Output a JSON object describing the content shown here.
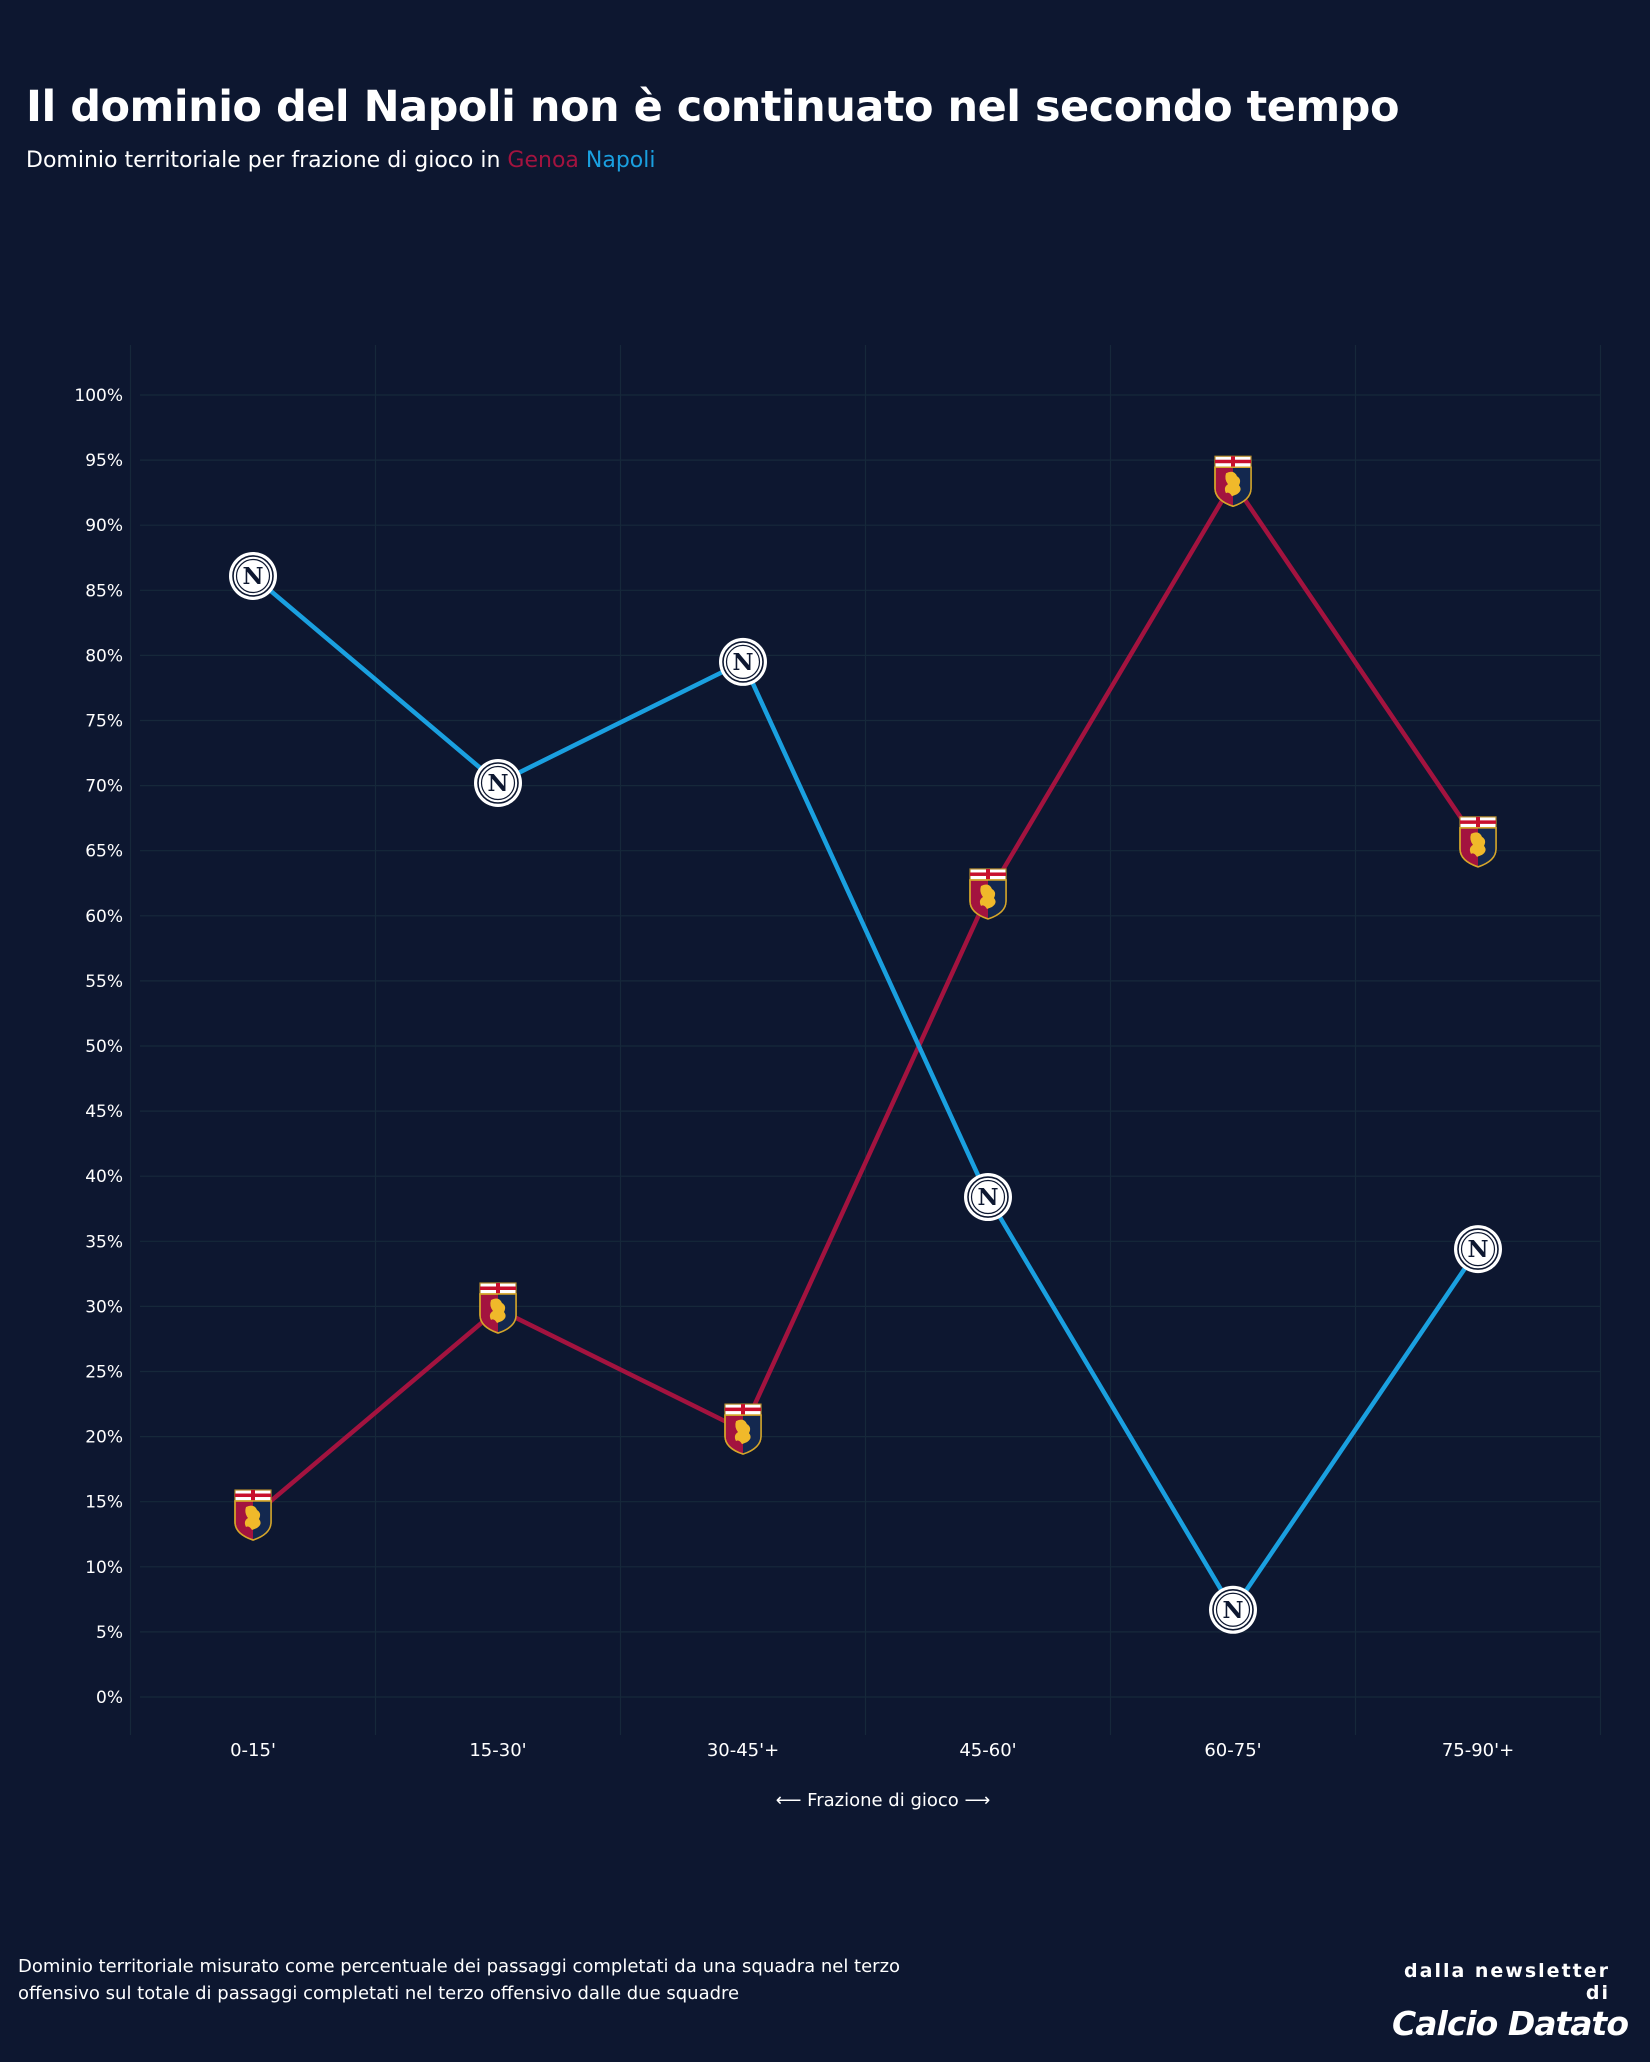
{
  "header": {
    "title": "Il dominio del Napoli non è continuato nel secondo tempo",
    "subtitle_prefix": "Dominio territoriale per frazione di gioco in",
    "team1": "Genoa",
    "team2": "Napoli"
  },
  "footer": {
    "note_line1": "Dominio territoriale misurato come percentuale dei passaggi completati da una squadra nel terzo",
    "note_line2": "offensivo sul totale di passaggi completati nel terzo offensivo dalle due squadre",
    "brand_top": "dalla newsletter di",
    "brand_name": "Calcio Datato"
  },
  "colors": {
    "background": "#0d1730",
    "genoa": "#a3133f",
    "napoli": "#1aa0e0",
    "grid": "#16283a"
  },
  "chart_data": {
    "type": "line",
    "categories": [
      "0-15'",
      "15-30'",
      "30-45'+",
      "45-60'",
      "60-75'",
      "75-90'+"
    ],
    "series": [
      {
        "name": "Genoa",
        "values": [
          13.9,
          29.8,
          20.5,
          61.6,
          93.3,
          65.6
        ],
        "color": "#a3133f",
        "marker": "genoa-crest"
      },
      {
        "name": "Napoli",
        "values": [
          86.1,
          70.2,
          79.5,
          38.4,
          6.7,
          34.4
        ],
        "color": "#1aa0e0",
        "marker": "napoli-badge"
      }
    ],
    "xlabel": "⟵ Frazione di gioco ⟶",
    "ylabel": "",
    "ylim": [
      0,
      100
    ],
    "yticks": [
      "0%",
      "5%",
      "10%",
      "15%",
      "20%",
      "25%",
      "30%",
      "35%",
      "40%",
      "45%",
      "50%",
      "55%",
      "60%",
      "65%",
      "70%",
      "75%",
      "80%",
      "85%",
      "90%",
      "95%",
      "100%"
    ],
    "grid": true
  }
}
